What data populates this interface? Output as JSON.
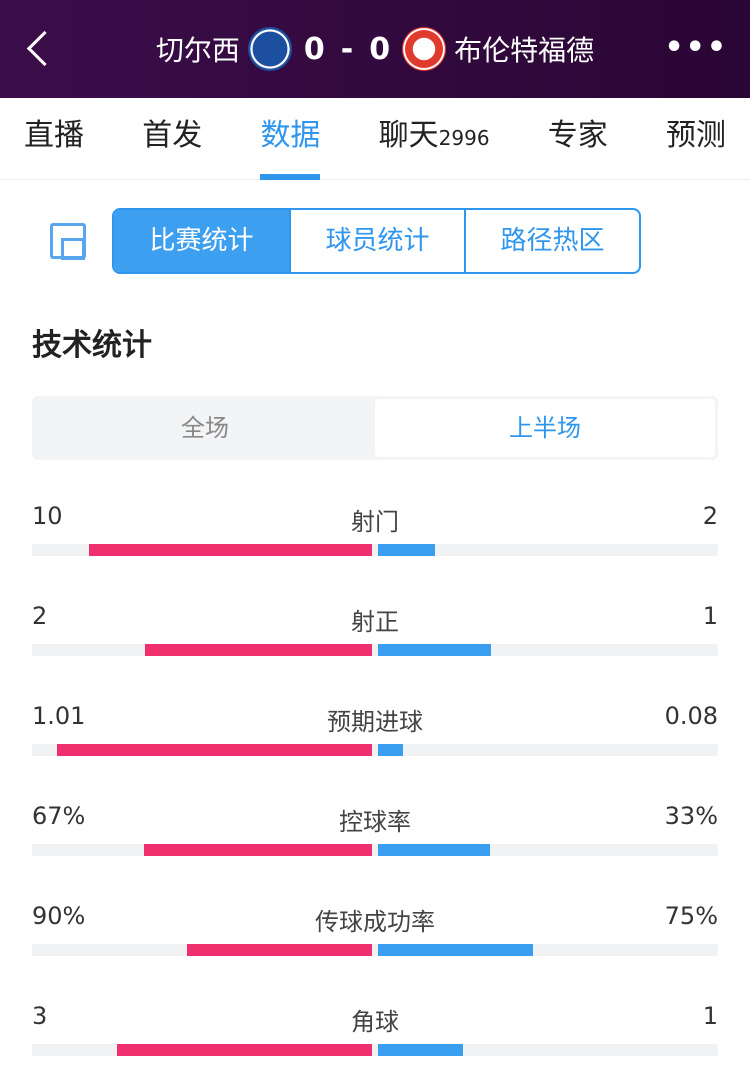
{
  "header": {
    "home_team": "切尔西",
    "away_team": "布伦特福德",
    "home_score": "0",
    "away_score": "0",
    "separator": "-",
    "home_logo": "chelsea-crest",
    "away_logo": "brentford-crest"
  },
  "tabs": [
    {
      "label": "直播"
    },
    {
      "label": "首发"
    },
    {
      "label": "数据",
      "active": true
    },
    {
      "label": "聊天",
      "count": "2996"
    },
    {
      "label": "专家"
    },
    {
      "label": "预测"
    }
  ],
  "segments": [
    "比赛统计",
    "球员统计",
    "路径热区"
  ],
  "section_title": "技术统计",
  "period": {
    "options": [
      "全场",
      "上半场"
    ],
    "selected": "上半场"
  },
  "colors": {
    "home": "#f0306e",
    "away": "#3a9ef0",
    "accent": "#2f96ee",
    "header": "#3b0d4a"
  },
  "stats": [
    {
      "name": "射门",
      "home": "10",
      "away": "2"
    },
    {
      "name": "射正",
      "home": "2",
      "away": "1"
    },
    {
      "name": "预期进球",
      "home": "1.01",
      "away": "0.08"
    },
    {
      "name": "控球率",
      "home": "67%",
      "away": "33%"
    },
    {
      "name": "传球成功率",
      "home": "90%",
      "away": "75%"
    },
    {
      "name": "角球",
      "home": "3",
      "away": "1"
    }
  ]
}
